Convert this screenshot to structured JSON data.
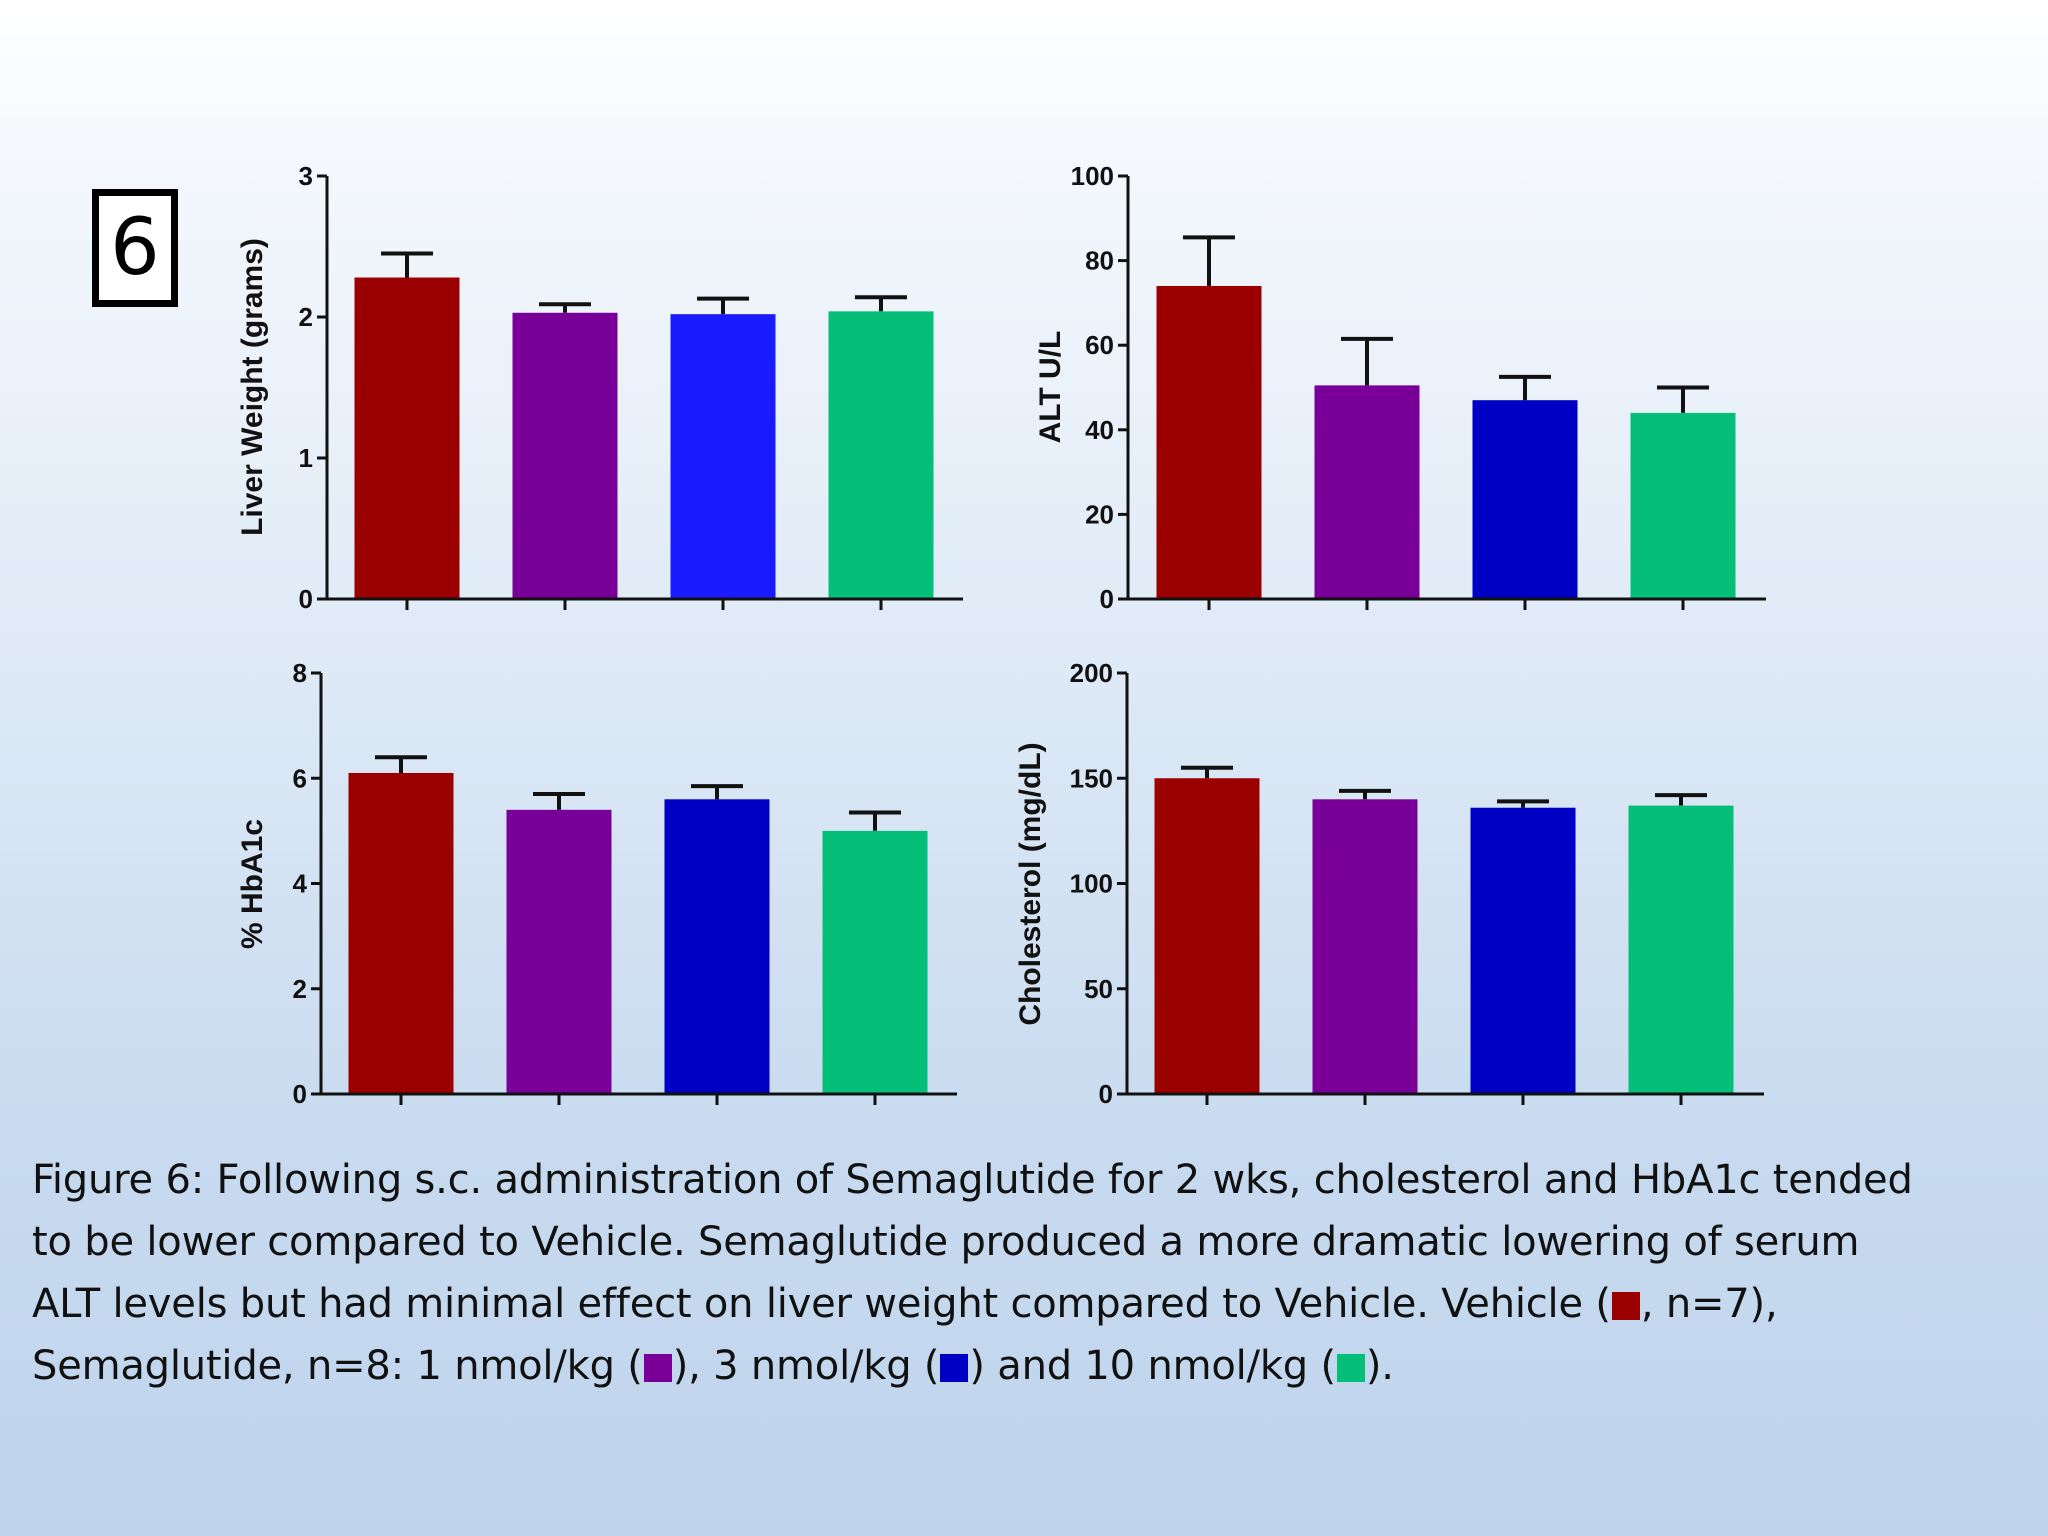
{
  "figure_label": "6",
  "colors": {
    "vehicle": "#9b0000",
    "sema_1": "#780099",
    "sema_3_top": "#1a1aff",
    "sema_3": "#0000c4",
    "sema_10": "#05be78"
  },
  "caption": {
    "line1": "Figure 6:  Following s.c. administration of Semaglutide for 2 wks, cholesterol and HbA1c tended",
    "line2": "to be lower compared to Vehicle.  Semaglutide produced a more dramatic lowering of serum",
    "line3_a": "ALT levels but had minimal effect on liver weight compared to Vehicle. Vehicle (",
    "line3_b": ", n=7),",
    "line4_a": "Semaglutide, n=8: 1 nmol/kg (",
    "line4_b": "), 3 nmol/kg (",
    "line4_c": ") and 10 nmol/kg (",
    "line4_d": ")."
  },
  "chart_data": [
    {
      "type": "bar",
      "ylabel": "Liver Weight (grams)",
      "ylim": [
        0,
        3
      ],
      "yticks": [
        0,
        1,
        2,
        3
      ],
      "values": [
        2.28,
        2.03,
        2.02,
        2.04
      ],
      "errors": [
        0.17,
        0.06,
        0.11,
        0.1
      ],
      "colors": [
        "#9b0000",
        "#780099",
        "#1a1aff",
        "#05be78"
      ]
    },
    {
      "type": "bar",
      "ylabel": "ALT U/L",
      "ylim": [
        0,
        100
      ],
      "yticks": [
        0,
        20,
        40,
        60,
        80,
        100
      ],
      "values": [
        74,
        50.5,
        47,
        44
      ],
      "errors": [
        11.5,
        11,
        5.5,
        6
      ],
      "colors": [
        "#9b0000",
        "#780099",
        "#0000c4",
        "#05be78"
      ]
    },
    {
      "type": "bar",
      "ylabel": "% HbA1c",
      "ylim": [
        0,
        8
      ],
      "yticks": [
        0,
        2,
        4,
        6,
        8
      ],
      "values": [
        6.1,
        5.4,
        5.6,
        5.0
      ],
      "errors": [
        0.3,
        0.3,
        0.25,
        0.35
      ],
      "colors": [
        "#9b0000",
        "#780099",
        "#0000c4",
        "#05be78"
      ]
    },
    {
      "type": "bar",
      "ylabel": "Cholesterol (mg/dL)",
      "ylim": [
        0,
        200
      ],
      "yticks": [
        0,
        50,
        100,
        150,
        200
      ],
      "values": [
        150,
        140,
        136,
        137
      ],
      "errors": [
        5,
        4,
        3,
        5
      ],
      "colors": [
        "#9b0000",
        "#780099",
        "#0000c4",
        "#05be78"
      ]
    }
  ]
}
